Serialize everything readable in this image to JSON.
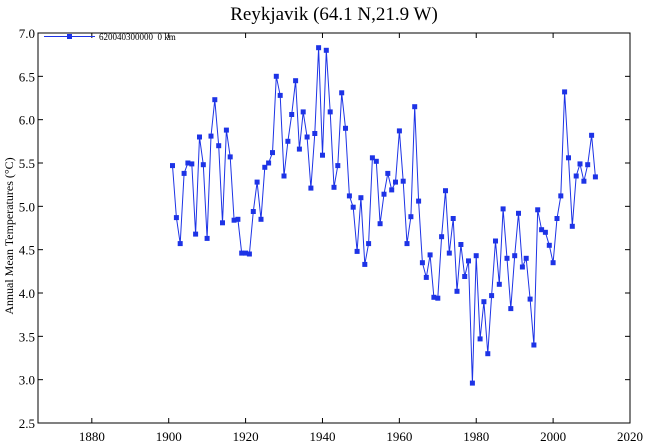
{
  "chart_data": {
    "type": "line",
    "title": "Reykjavik (64.1 N,21.9 W)",
    "xlabel": "",
    "ylabel": "Annual Mean Temperatures (°C)",
    "xlim": [
      1866,
      2020
    ],
    "ylim": [
      2.5,
      7.0
    ],
    "xticks": [
      1880,
      1900,
      1920,
      1940,
      1960,
      1980,
      2000,
      2020
    ],
    "yticks": [
      "2.5",
      "3.0",
      "3.5",
      "4.0",
      "4.5",
      "5.0",
      "5.5",
      "6.0",
      "6.5",
      "7.0"
    ],
    "legend_position": "top-left",
    "grid": false,
    "color": "#1d33e6",
    "series": [
      {
        "name": "620040300000  0 km",
        "x": [
          1901,
          1902,
          1903,
          1904,
          1905,
          1906,
          1907,
          1908,
          1909,
          1910,
          1911,
          1912,
          1913,
          1914,
          1915,
          1916,
          1917,
          1918,
          1919,
          1920,
          1921,
          1922,
          1923,
          1924,
          1925,
          1926,
          1927,
          1928,
          1929,
          1930,
          1931,
          1932,
          1933,
          1934,
          1935,
          1936,
          1937,
          1938,
          1939,
          1940,
          1941,
          1942,
          1943,
          1944,
          1945,
          1946,
          1947,
          1948,
          1949,
          1950,
          1951,
          1952,
          1953,
          1954,
          1955,
          1956,
          1957,
          1958,
          1959,
          1960,
          1961,
          1962,
          1963,
          1964,
          1965,
          1966,
          1967,
          1968,
          1969,
          1970,
          1971,
          1972,
          1973,
          1974,
          1975,
          1976,
          1977,
          1978,
          1979,
          1980,
          1981,
          1982,
          1983,
          1984,
          1985,
          1986,
          1987,
          1988,
          1989,
          1990,
          1991,
          1992,
          1993,
          1994,
          1995,
          1996,
          1997,
          1998,
          1999,
          2000,
          2001,
          2002,
          2003,
          2004,
          2005,
          2006,
          2007,
          2008,
          2009,
          2010,
          2011
        ],
        "y": [
          5.47,
          4.87,
          4.57,
          5.38,
          5.5,
          5.49,
          4.68,
          5.8,
          5.48,
          4.63,
          5.81,
          6.23,
          5.7,
          4.81,
          5.88,
          5.57,
          4.84,
          4.85,
          4.46,
          4.46,
          4.45,
          4.94,
          5.28,
          4.85,
          5.45,
          5.5,
          5.62,
          6.5,
          6.28,
          5.35,
          5.75,
          6.06,
          6.45,
          5.66,
          6.09,
          5.8,
          5.21,
          5.84,
          6.83,
          5.59,
          6.8,
          6.09,
          5.22,
          5.47,
          6.31,
          5.9,
          5.12,
          4.99,
          4.48,
          5.1,
          4.33,
          4.57,
          5.56,
          5.52,
          4.8,
          5.14,
          5.38,
          5.19,
          5.28,
          5.87,
          5.29,
          4.57,
          4.88,
          6.15,
          5.06,
          4.35,
          4.18,
          4.44,
          3.95,
          3.94,
          4.65,
          5.18,
          4.46,
          4.86,
          4.02,
          4.56,
          4.19,
          4.37,
          2.96,
          4.43,
          3.47,
          3.9,
          3.3,
          3.97,
          4.6,
          4.1,
          4.97,
          4.4,
          3.82,
          4.43,
          4.92,
          4.3,
          4.4,
          3.93,
          3.4,
          4.96,
          4.73,
          4.7,
          4.55,
          4.35,
          4.86,
          5.12,
          6.32,
          5.56,
          4.77,
          5.35,
          5.49,
          5.29,
          5.48,
          5.82,
          5.34
        ]
      }
    ]
  }
}
